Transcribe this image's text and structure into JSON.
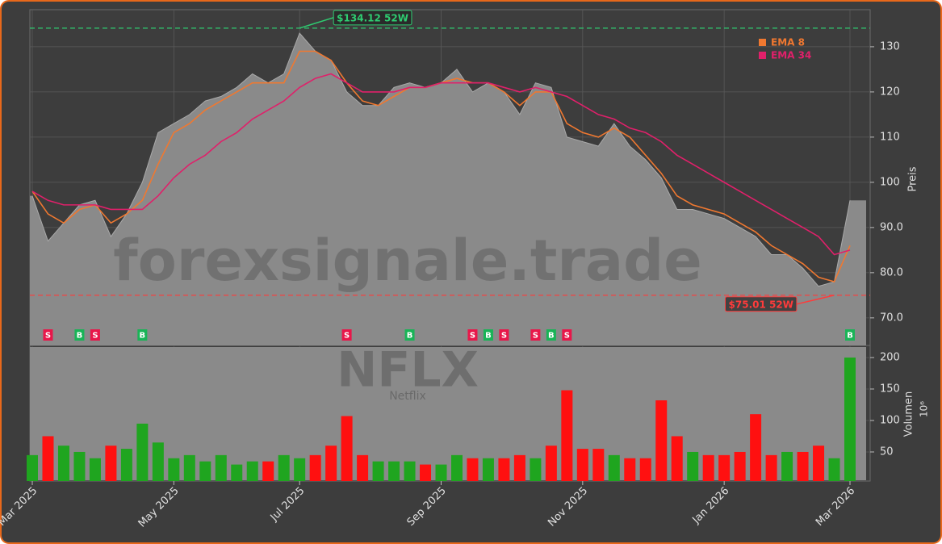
{
  "chart_data": [
    {
      "type": "area",
      "title": "NFLX",
      "subtitle": "Netflix",
      "watermark": "forexsignale.trade",
      "ylabel": "Preis",
      "values": [
        97,
        87,
        91,
        95,
        96,
        88,
        93,
        100,
        111,
        113,
        115,
        118,
        119,
        121,
        124,
        122,
        124,
        133,
        129,
        127,
        120,
        117,
        117,
        121,
        122,
        121,
        122,
        125,
        120,
        122,
        120,
        115,
        122,
        121,
        110,
        109,
        108,
        113,
        108,
        105,
        101,
        94,
        94,
        93,
        92,
        90,
        88,
        84,
        84,
        81,
        77,
        78,
        96
      ],
      "color": "#8a8a8a",
      "series": [
        {
          "name": "EMA 8",
          "color": "#f07830",
          "values": [
            98,
            93,
            91,
            94,
            95,
            91,
            93,
            96,
            104,
            111,
            113,
            116,
            118,
            120,
            122,
            122,
            122,
            129,
            129,
            127,
            122,
            118,
            117,
            119,
            121,
            121,
            122,
            123,
            122,
            122,
            120,
            117,
            120,
            120,
            113,
            111,
            110,
            112,
            110,
            106,
            102,
            97,
            95,
            94,
            93,
            91,
            89,
            86,
            84,
            82,
            79,
            78,
            86
          ]
        },
        {
          "name": "EMA 34",
          "color": "#e0206a",
          "values": [
            98,
            96,
            95,
            95,
            95,
            94,
            94,
            94,
            97,
            101,
            104,
            106,
            109,
            111,
            114,
            116,
            118,
            121,
            123,
            124,
            122,
            120,
            120,
            120,
            121,
            121,
            122,
            122,
            122,
            122,
            121,
            120,
            121,
            120,
            119,
            117,
            115,
            114,
            112,
            111,
            109,
            106,
            104,
            102,
            100,
            98,
            96,
            94,
            92,
            90,
            88,
            84,
            85
          ]
        }
      ],
      "annotations": [
        {
          "value": 134.12,
          "label": "$134.12 52W",
          "color": "#2ecc71",
          "index": 17
        },
        {
          "value": 75.01,
          "label": "$75.01 52W",
          "color": "#ff3b3b",
          "index": 51
        }
      ],
      "signals": [
        null,
        "S",
        null,
        "B",
        "S",
        null,
        null,
        "B",
        null,
        null,
        null,
        null,
        null,
        null,
        null,
        null,
        null,
        null,
        null,
        null,
        "S",
        null,
        null,
        null,
        "B",
        null,
        null,
        null,
        "S",
        "B",
        "S",
        null,
        "S",
        "B",
        "S",
        null,
        null,
        null,
        null,
        null,
        null,
        null,
        null,
        null,
        null,
        null,
        null,
        null,
        null,
        null,
        null,
        null,
        "B"
      ],
      "signal_colors": {
        "S": "#e8174a",
        "B": "#19b457"
      },
      "ylim": [
        63.9,
        138.2
      ],
      "yticks": [
        {
          "value": 70,
          "label": "70.0"
        },
        {
          "value": 80,
          "label": "80.0"
        },
        {
          "value": 90,
          "label": "90.0"
        },
        100,
        110,
        120,
        130
      ],
      "grid": true
    },
    {
      "type": "bar",
      "ylabel": "Volumen",
      "yunit": "10⁶",
      "categories": [
        "Mar 2025",
        null,
        null,
        null,
        null,
        null,
        null,
        null,
        null,
        "May 2025",
        null,
        null,
        null,
        null,
        null,
        null,
        null,
        "Jul 2025",
        null,
        null,
        null,
        null,
        null,
        null,
        null,
        null,
        "Sep 2025",
        null,
        null,
        null,
        null,
        null,
        null,
        null,
        null,
        "Nov 2025",
        null,
        null,
        null,
        null,
        null,
        null,
        null,
        null,
        "Jan 2026",
        null,
        null,
        null,
        null,
        null,
        null,
        null,
        "Mar 2026"
      ],
      "values": [
        45,
        75,
        60,
        50,
        40,
        60,
        55,
        95,
        65,
        40,
        45,
        35,
        45,
        30,
        35,
        35,
        45,
        40,
        45,
        60,
        107,
        45,
        35,
        35,
        35,
        30,
        30,
        45,
        40,
        40,
        40,
        45,
        40,
        60,
        148,
        55,
        55,
        45,
        40,
        40,
        132,
        75,
        50,
        45,
        45,
        50,
        110,
        45,
        50,
        50,
        60,
        40,
        200
      ],
      "up_color": "#1fa51f",
      "down_color": "#ff1010",
      "ylim": [
        3.8,
        219.2
      ],
      "yticks": [
        50,
        100,
        150,
        200
      ],
      "grid": true
    }
  ]
}
